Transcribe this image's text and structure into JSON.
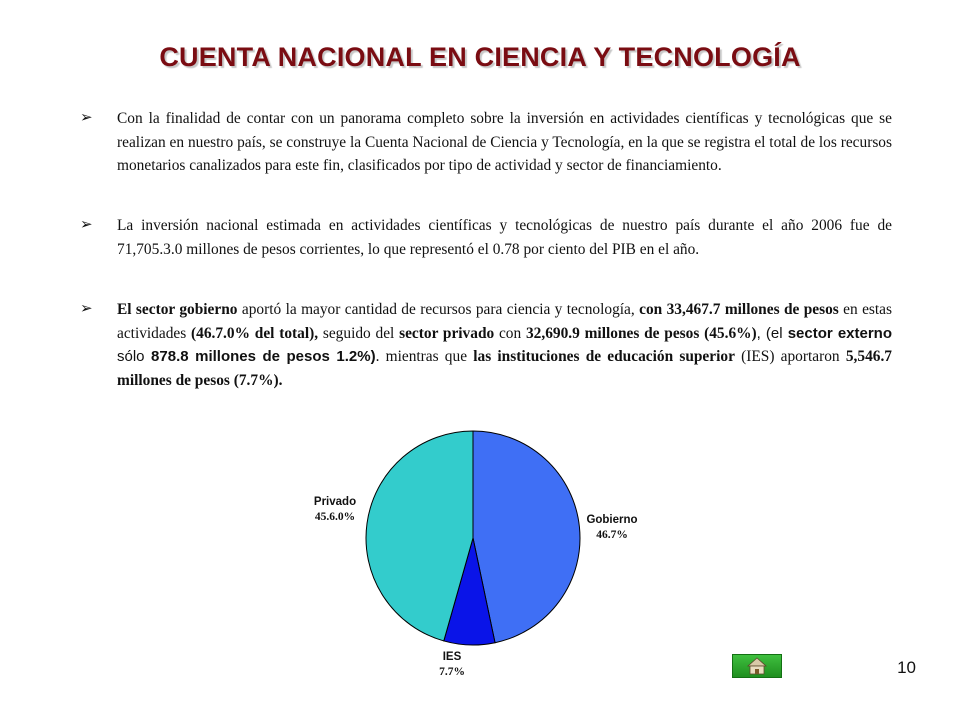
{
  "title": "CUENTA NACIONAL EN CIENCIA Y TECNOLOGÍA",
  "paragraph1": "Con la finalidad de contar con un panorama completo sobre la inversión en actividades científicas y tecnológicas que se realizan en nuestro país, se construye la Cuenta Nacional de Ciencia y Tecnología, en la que se registra el total de los recursos monetarios canalizados para este fin, clasificados por tipo de actividad y sector de financiamiento.",
  "paragraph2": "La inversión nacional estimada en actividades científicas y tecnológicas de nuestro país durante el año 2006 fue de 71,705.3.0 millones de pesos corrientes, lo que representó el 0.78 por ciento del PIB en el año.",
  "paragraph3": {
    "s1": "El sector gobierno",
    "s2": " aportó la mayor cantidad de recursos para ciencia y tecnología, ",
    "s3": "con 33,467.7 millones de pesos",
    "s4": " en estas actividades ",
    "s5": "(46.7.0% del total),",
    "s6": " seguido del ",
    "s7": "sector privado",
    "s8": " con ",
    "s9": "32,690.9 millones de pesos (45.6%)",
    "s10": ", (el ",
    "s11": "sector externo",
    "s12": " sólo ",
    "s13": "878.8 millones de pesos 1.2%)",
    "s14": ". mientras que ",
    "s15": "las instituciones de educación superior",
    "s16": " (IES) aportaron ",
    "s17": "5,546.7 millones de pesos (7.7%)."
  },
  "chart_data": {
    "type": "pie",
    "slices": [
      {
        "label": "Gobierno",
        "pct_label": "46.7%",
        "value": 46.7,
        "color": "#3f6ff5"
      },
      {
        "label": "IES",
        "pct_label": "7.7%",
        "value": 7.7,
        "color": "#0a14e8"
      },
      {
        "label": "Privado",
        "pct_label": "45.6.0%",
        "value": 45.6,
        "color": "#33cccc"
      }
    ]
  },
  "page_number": "10",
  "home_icon": "home-icon"
}
